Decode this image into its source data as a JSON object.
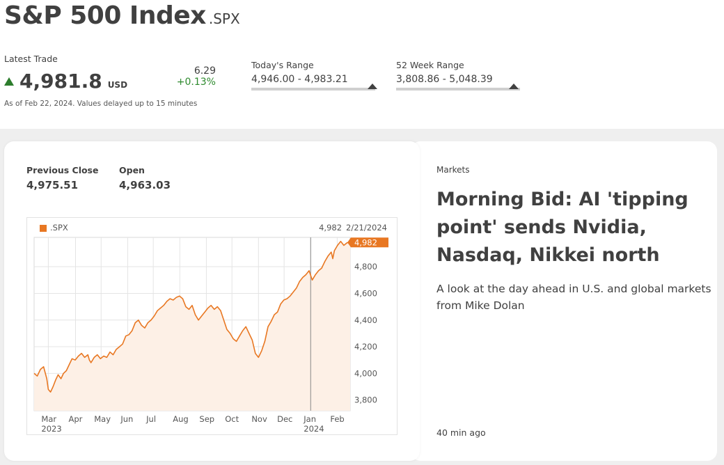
{
  "header": {
    "title": "S&P 500 Index",
    "symbol": ".SPX"
  },
  "quote": {
    "latest_label": "Latest Trade",
    "price": "4,981.8",
    "currency": "USD",
    "change_abs": "6.29",
    "change_pct": "+0.13%",
    "direction": "up",
    "as_of": "As of Feb 22, 2024. Values delayed up to 15 minutes"
  },
  "todays_range": {
    "label": "Today's Range",
    "value": "4,946.00 - 4,983.21",
    "position": 0.98
  },
  "week52_range": {
    "label": "52 Week Range",
    "value": "3,808.86 - 5,048.39",
    "position": 0.95
  },
  "stats": {
    "prev_close_label": "Previous Close",
    "prev_close": "4,975.51",
    "open_label": "Open",
    "open": "4,963.03"
  },
  "colors": {
    "accent": "#e87722",
    "up": "#2d8a2d",
    "text": "#404040",
    "area": "#fdf0e6"
  },
  "chart_data": {
    "type": "area",
    "legend": [
      ".SPX"
    ],
    "last_value_label": "4,982",
    "last_date_label": "2/21/2024",
    "callout": "4,982",
    "x_ticks": [
      {
        "label": "Mar",
        "sub": "2023",
        "t": 0.045
      },
      {
        "label": "Apr",
        "t": 0.131
      },
      {
        "label": "May",
        "t": 0.212
      },
      {
        "label": "Jun",
        "t": 0.296
      },
      {
        "label": "Jul",
        "t": 0.377
      },
      {
        "label": "Aug",
        "t": 0.461
      },
      {
        "label": "Sep",
        "t": 0.545
      },
      {
        "label": "Oct",
        "t": 0.626
      },
      {
        "label": "Nov",
        "t": 0.71
      },
      {
        "label": "Dec",
        "t": 0.791
      },
      {
        "label": "Jan",
        "sub": "2024",
        "t": 0.875
      },
      {
        "label": "Feb",
        "t": 0.959
      }
    ],
    "y_ticks": [
      "3,800",
      "4,000",
      "4,200",
      "4,400",
      "4,600",
      "4,800"
    ],
    "y_tick_values": [
      3800,
      4000,
      4200,
      4400,
      4600,
      4800
    ],
    "ylim": [
      3720,
      5020
    ],
    "cursor_t": 0.875,
    "series": [
      {
        "name": ".SPX",
        "points": [
          [
            0.0,
            4000
          ],
          [
            0.01,
            3980
          ],
          [
            0.02,
            4030
          ],
          [
            0.03,
            4050
          ],
          [
            0.04,
            3960
          ],
          [
            0.045,
            3880
          ],
          [
            0.052,
            3860
          ],
          [
            0.06,
            3900
          ],
          [
            0.068,
            3950
          ],
          [
            0.076,
            3990
          ],
          [
            0.085,
            3960
          ],
          [
            0.093,
            4000
          ],
          [
            0.102,
            4020
          ],
          [
            0.112,
            4070
          ],
          [
            0.12,
            4110
          ],
          [
            0.13,
            4100
          ],
          [
            0.14,
            4130
          ],
          [
            0.15,
            4150
          ],
          [
            0.16,
            4120
          ],
          [
            0.17,
            4140
          ],
          [
            0.175,
            4100
          ],
          [
            0.18,
            4080
          ],
          [
            0.19,
            4120
          ],
          [
            0.2,
            4140
          ],
          [
            0.21,
            4110
          ],
          [
            0.22,
            4130
          ],
          [
            0.23,
            4120
          ],
          [
            0.24,
            4160
          ],
          [
            0.25,
            4140
          ],
          [
            0.26,
            4180
          ],
          [
            0.27,
            4200
          ],
          [
            0.28,
            4220
          ],
          [
            0.29,
            4280
          ],
          [
            0.3,
            4290
          ],
          [
            0.31,
            4320
          ],
          [
            0.32,
            4380
          ],
          [
            0.33,
            4400
          ],
          [
            0.34,
            4360
          ],
          [
            0.35,
            4340
          ],
          [
            0.36,
            4380
          ],
          [
            0.37,
            4400
          ],
          [
            0.38,
            4430
          ],
          [
            0.39,
            4470
          ],
          [
            0.4,
            4490
          ],
          [
            0.41,
            4510
          ],
          [
            0.42,
            4540
          ],
          [
            0.43,
            4560
          ],
          [
            0.44,
            4550
          ],
          [
            0.45,
            4570
          ],
          [
            0.46,
            4580
          ],
          [
            0.47,
            4560
          ],
          [
            0.48,
            4500
          ],
          [
            0.49,
            4480
          ],
          [
            0.5,
            4510
          ],
          [
            0.51,
            4440
          ],
          [
            0.52,
            4400
          ],
          [
            0.53,
            4430
          ],
          [
            0.54,
            4460
          ],
          [
            0.55,
            4490
          ],
          [
            0.56,
            4510
          ],
          [
            0.57,
            4480
          ],
          [
            0.58,
            4500
          ],
          [
            0.59,
            4470
          ],
          [
            0.6,
            4400
          ],
          [
            0.61,
            4330
          ],
          [
            0.62,
            4300
          ],
          [
            0.63,
            4260
          ],
          [
            0.64,
            4240
          ],
          [
            0.65,
            4280
          ],
          [
            0.66,
            4320
          ],
          [
            0.67,
            4350
          ],
          [
            0.68,
            4300
          ],
          [
            0.69,
            4250
          ],
          [
            0.7,
            4150
          ],
          [
            0.71,
            4120
          ],
          [
            0.72,
            4170
          ],
          [
            0.73,
            4240
          ],
          [
            0.74,
            4350
          ],
          [
            0.75,
            4390
          ],
          [
            0.76,
            4440
          ],
          [
            0.77,
            4460
          ],
          [
            0.78,
            4520
          ],
          [
            0.79,
            4550
          ],
          [
            0.8,
            4560
          ],
          [
            0.81,
            4580
          ],
          [
            0.82,
            4610
          ],
          [
            0.83,
            4640
          ],
          [
            0.84,
            4690
          ],
          [
            0.85,
            4720
          ],
          [
            0.86,
            4740
          ],
          [
            0.87,
            4770
          ],
          [
            0.88,
            4700
          ],
          [
            0.89,
            4740
          ],
          [
            0.9,
            4770
          ],
          [
            0.91,
            4790
          ],
          [
            0.92,
            4840
          ],
          [
            0.93,
            4880
          ],
          [
            0.94,
            4910
          ],
          [
            0.945,
            4860
          ],
          [
            0.95,
            4920
          ],
          [
            0.96,
            4960
          ],
          [
            0.97,
            4990
          ],
          [
            0.98,
            4960
          ],
          [
            0.99,
            4980
          ],
          [
            1.0,
            4982
          ]
        ]
      }
    ]
  },
  "news": {
    "section": "Markets",
    "headline": "Morning Bid: AI 'tipping point' sends Nvidia, Nasdaq, Nikkei north",
    "description": "A look at the day ahead in U.S. and global markets from Mike Dolan",
    "time_ago": "40 min ago"
  }
}
